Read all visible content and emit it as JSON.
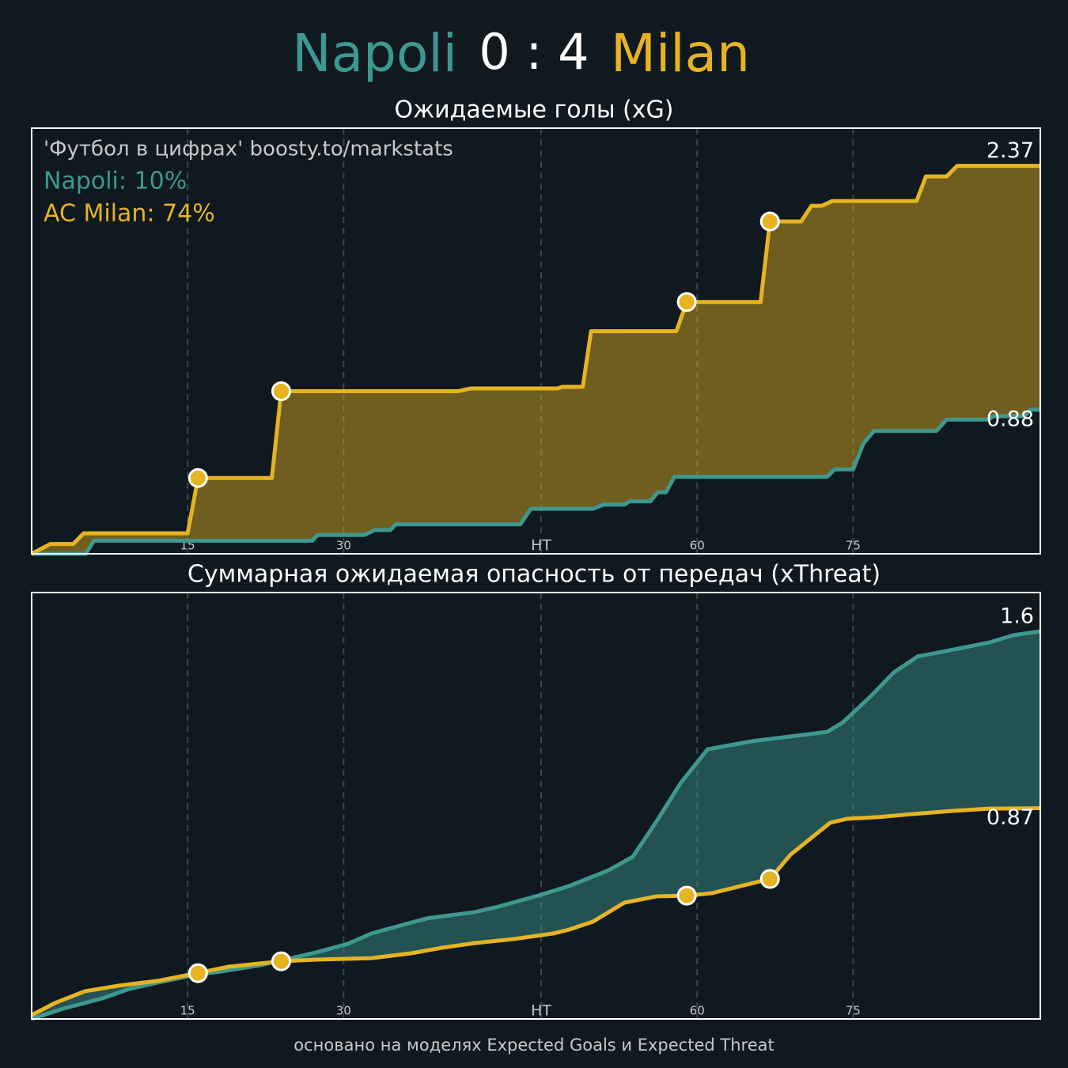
{
  "header": {
    "home": "Napoli",
    "score": "0 : 4",
    "away": "Milan",
    "home_color": "#3d9890",
    "score_color": "#ffffff",
    "away_color": "#e6b422"
  },
  "chart_data": [
    {
      "type": "line",
      "title": "Ожидаемые голы (xG)",
      "annotations": [
        {
          "text": "'Футбол в цифрах' boosty.to/markstats",
          "color": "#c8c8c8"
        },
        {
          "text": "Napoli: 10%",
          "color": "#3d9890"
        },
        {
          "text": "AC Milan: 74%",
          "color": "#e6b422"
        }
      ],
      "xlim": [
        0,
        97
      ],
      "ylim": [
        0,
        2.6
      ],
      "xticks": [
        15,
        {
          "value": 30,
          "label": "30"
        },
        {
          "value": 49,
          "label": "HT"
        },
        {
          "value": 64,
          "label": "60"
        },
        {
          "value": 79,
          "label": "75"
        }
      ],
      "grid": true,
      "series": [
        {
          "name": "Napoli",
          "color": "#3d9890",
          "x": [
            0,
            5.2,
            6,
            27,
            27.5,
            32,
            33,
            34.5,
            35,
            47,
            48,
            54,
            55,
            57,
            57.5,
            59.5,
            60.2,
            61,
            61.8,
            76.5,
            77.2,
            79,
            80,
            81,
            87,
            88,
            92,
            92.5,
            95.5,
            96,
            97
          ],
          "values": [
            0,
            0,
            0.08,
            0.08,
            0.115,
            0.115,
            0.145,
            0.145,
            0.18,
            0.18,
            0.275,
            0.275,
            0.3,
            0.3,
            0.32,
            0.32,
            0.375,
            0.375,
            0.47,
            0.47,
            0.515,
            0.515,
            0.675,
            0.75,
            0.75,
            0.82,
            0.82,
            0.84,
            0.84,
            0.88,
            0.88
          ]
        },
        {
          "name": "Milan",
          "color": "#e6b422",
          "x": [
            0,
            1.8,
            4,
            5,
            15,
            16,
            23.1,
            24,
            41,
            42.2,
            50.6,
            51,
            53,
            53.8,
            62,
            63,
            70.1,
            71,
            74,
            75,
            76,
            77,
            85.1,
            86,
            88,
            89,
            97
          ],
          "values": [
            0,
            0.06,
            0.06,
            0.125,
            0.125,
            0.463,
            0.463,
            0.993,
            0.993,
            1.01,
            1.01,
            1.02,
            1.02,
            1.36,
            1.36,
            1.538,
            1.538,
            2.03,
            2.03,
            2.126,
            2.126,
            2.155,
            2.155,
            2.305,
            2.305,
            2.37,
            2.37
          ]
        }
      ],
      "goals": {
        "color": "#e6b422",
        "x": [
          16,
          24,
          63,
          71
        ],
        "values": [
          0.463,
          0.993,
          1.538,
          2.03
        ]
      }
    },
    {
      "type": "line",
      "title": "Суммарная ожидаемая опасность от передач (xThreat)",
      "xlim": [
        0,
        97
      ],
      "ylim": [
        0,
        1.76
      ],
      "xticks": [
        15,
        {
          "value": 30,
          "label": "30"
        },
        {
          "value": 49,
          "label": "HT"
        },
        {
          "value": 64,
          "label": "60"
        },
        {
          "value": 79,
          "label": "75"
        }
      ],
      "grid": true,
      "series": [
        {
          "name": "Napoli",
          "color": "#3d9890",
          "x": [
            0,
            3.0,
            6.8,
            9.4,
            12.1,
            15.9,
            18.2,
            22.0,
            27.3,
            30.4,
            32.7,
            36.5,
            38.0,
            42.6,
            44.9,
            48.7,
            51.7,
            55.5,
            57.8,
            60.1,
            62.4,
            65.0,
            69.2,
            73.0,
            76.5,
            78.0,
            80.7,
            82.9,
            85.2,
            87.5,
            92.1,
            94.4,
            97
          ],
          "values": [
            0,
            0.042,
            0.085,
            0.124,
            0.15,
            0.183,
            0.196,
            0.222,
            0.274,
            0.31,
            0.353,
            0.398,
            0.415,
            0.441,
            0.464,
            0.509,
            0.549,
            0.614,
            0.669,
            0.816,
            0.973,
            1.113,
            1.146,
            1.166,
            1.185,
            1.224,
            1.332,
            1.43,
            1.496,
            1.515,
            1.554,
            1.584,
            1.6
          ]
        },
        {
          "name": "Milan",
          "color": "#e6b422",
          "x": [
            0,
            2.2,
            5.1,
            8.3,
            12.1,
            15.9,
            19.0,
            24.0,
            27.3,
            32.7,
            36.5,
            39.5,
            42.6,
            46.4,
            50.2,
            51.7,
            54.0,
            57.0,
            60.1,
            63.0,
            65.4,
            71.0,
            73.0,
            76.8,
            78.4,
            81.4,
            84.5,
            88.3,
            92.1,
            97
          ],
          "values": [
            0.016,
            0.065,
            0.114,
            0.137,
            0.157,
            0.189,
            0.216,
            0.238,
            0.245,
            0.251,
            0.271,
            0.294,
            0.313,
            0.33,
            0.353,
            0.369,
            0.402,
            0.48,
            0.506,
            0.509,
            0.519,
            0.578,
            0.679,
            0.81,
            0.826,
            0.833,
            0.845,
            0.858,
            0.868,
            0.87
          ]
        }
      ],
      "goals": {
        "color": "#e6b422",
        "x": [
          16,
          24,
          63,
          71
        ],
        "values": [
          0.189,
          0.238,
          0.509,
          0.578
        ]
      }
    }
  ],
  "footer": "основано на моделях Expected Goals и Expected Threat"
}
